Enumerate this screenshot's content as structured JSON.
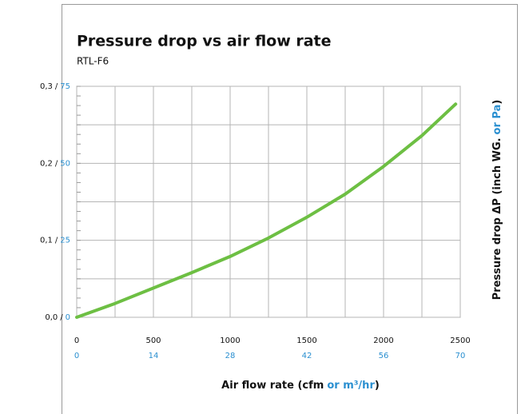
{
  "chart_data": {
    "type": "line",
    "title": "Pressure drop vs air flow rate",
    "subtitle": "RTL-F6",
    "x_label": [
      "Air flow rate (cfm",
      "or m³/hr",
      ")"
    ],
    "y_label": [
      "Pressure drop ΔP (inch WG.",
      "or Pa",
      ")"
    ],
    "x": [
      0,
      250,
      500,
      750,
      1000,
      1250,
      1500,
      1750,
      2000,
      2250,
      2470
    ],
    "series": [
      {
        "color": "#6dbf43",
        "values": [
          0,
          0.018,
          0.038,
          0.058,
          0.079,
          0.103,
          0.13,
          0.16,
          0.196,
          0.236,
          0.277
        ]
      }
    ],
    "xlim": [
      0,
      2500
    ],
    "xticks": [
      0,
      500,
      1000,
      1500,
      2000,
      2500
    ],
    "x2lim": [
      0,
      70
    ],
    "x2ticks": [
      0,
      14,
      28,
      42,
      56,
      70
    ],
    "ylim": [
      0,
      0.3
    ],
    "yticks": [
      {
        "value": 0,
        "label": "0,0"
      },
      {
        "value": 0.1,
        "label": "0,1"
      },
      {
        "value": 0.2,
        "label": "0,2"
      },
      {
        "value": 0.3,
        "label": "0,3"
      }
    ],
    "y2lim": [
      0,
      75
    ],
    "y2ticks": [
      0,
      25,
      50,
      75
    ],
    "ytick_separator": "/",
    "secondary_color": "#2a8fd0",
    "grid": true
  }
}
